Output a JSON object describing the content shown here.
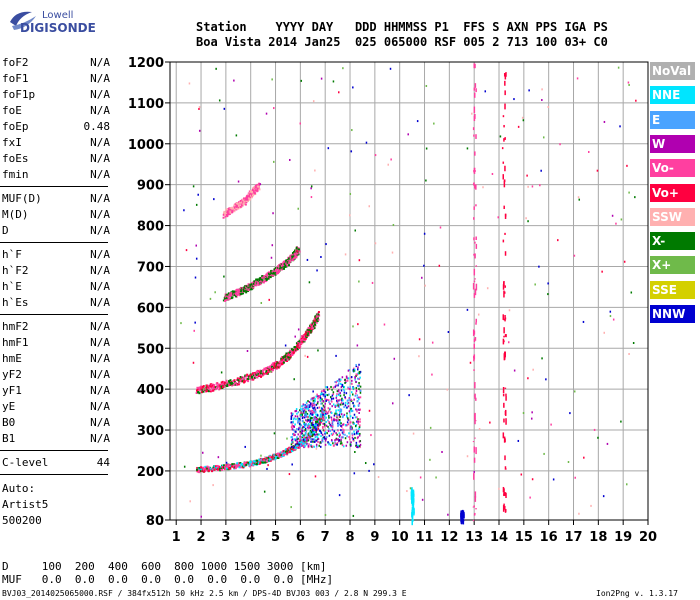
{
  "logo": {
    "line1": "Lowell",
    "line2": "DIGISONDE"
  },
  "header": {
    "row1": "Station    YYYY DAY   DDD HHMMSS P1  FFS S AXN PPS IGA PS",
    "row2": "Boa Vista 2014 Jan25  025 065000 RSF 005 2 713 100 03+ C0"
  },
  "scaled_params": [
    {
      "group": 1,
      "items": [
        {
          "name": "foF2",
          "value": "N/A"
        },
        {
          "name": "foF1",
          "value": "N/A"
        },
        {
          "name": "foF1p",
          "value": "N/A"
        },
        {
          "name": "foE",
          "value": "N/A"
        },
        {
          "name": "foEp",
          "value": "0.48"
        },
        {
          "name": "fxI",
          "value": "N/A"
        },
        {
          "name": "foEs",
          "value": "N/A"
        },
        {
          "name": "fmin",
          "value": "N/A"
        }
      ]
    },
    {
      "group": 2,
      "items": [
        {
          "name": "MUF(D)",
          "value": "N/A"
        },
        {
          "name": "M(D)",
          "value": "N/A"
        },
        {
          "name": "D",
          "value": "N/A"
        }
      ]
    },
    {
      "group": 3,
      "items": [
        {
          "name": "h`F",
          "value": "N/A"
        },
        {
          "name": "h`F2",
          "value": "N/A"
        },
        {
          "name": "h`E",
          "value": "N/A"
        },
        {
          "name": "h`Es",
          "value": "N/A"
        }
      ]
    },
    {
      "group": 4,
      "items": [
        {
          "name": "hmF2",
          "value": "N/A"
        },
        {
          "name": "hmF1",
          "value": "N/A"
        },
        {
          "name": "hmE",
          "value": "N/A"
        },
        {
          "name": "yF2",
          "value": "N/A"
        },
        {
          "name": "yF1",
          "value": "N/A"
        },
        {
          "name": "yE",
          "value": "N/A"
        },
        {
          "name": "B0",
          "value": "N/A"
        },
        {
          "name": "B1",
          "value": "N/A"
        }
      ]
    },
    {
      "group": 5,
      "items": [
        {
          "name": "C-level",
          "value": "44"
        }
      ]
    }
  ],
  "autoscale": {
    "line1": "Auto:",
    "line2": "Artist5",
    "line3": "500200"
  },
  "legend": [
    {
      "label": "NoVal",
      "color": "#b0b0b0"
    },
    {
      "label": "NNE",
      "color": "#00e5ff"
    },
    {
      "label": "E",
      "color": "#4aa3ff"
    },
    {
      "label": "W",
      "color": "#b000b0"
    },
    {
      "label": "Vo-",
      "color": "#ff3fa0"
    },
    {
      "label": "Vo+",
      "color": "#ff0040"
    },
    {
      "label": "SSW",
      "color": "#ffb0b0"
    },
    {
      "label": "X-",
      "color": "#007a00"
    },
    {
      "label": "X+",
      "color": "#6fba4a"
    },
    {
      "label": "SSE",
      "color": "#d4d000"
    },
    {
      "label": "NNW",
      "color": "#0000d0"
    }
  ],
  "footer": {
    "d_row": "D     100  200  400  600  800 1000 1500 3000 [km]",
    "muf_row": "MUF   0.0  0.0  0.0  0.0  0.0  0.0  0.0  0.0 [MHz]",
    "info": "BVJ03_2014025065000.RSF / 384fx512h 50 kHz 2.5 km / DPS-4D BVJ03 003 / 2.8 N 299.3 E",
    "version": "Ion2Png v. 1.3.17"
  },
  "chart_data": {
    "type": "scatter",
    "title": "",
    "xlabel": "",
    "ylabel": "",
    "xlim": [
      0.75,
      20
    ],
    "ylim": [
      80,
      1200
    ],
    "x_ticks": [
      1,
      2,
      3,
      4,
      5,
      6,
      7,
      8,
      9,
      10,
      11,
      12,
      13,
      14,
      15,
      16,
      17,
      18,
      19,
      20
    ],
    "y_ticks": [
      80,
      200,
      300,
      400,
      500,
      600,
      700,
      800,
      900,
      1000,
      1100,
      1200
    ],
    "grid": true,
    "legend_position": "right",
    "traces": [
      {
        "name": "F1 trace",
        "colors": [
          "Vo-",
          "Vo+",
          "X-",
          "NNE"
        ],
        "points": [
          [
            1.8,
            205
          ],
          [
            2.5,
            208
          ],
          [
            3.2,
            213
          ],
          [
            4.0,
            220
          ],
          [
            4.6,
            230
          ],
          [
            5.1,
            240
          ],
          [
            5.5,
            252
          ],
          [
            5.9,
            265
          ],
          [
            6.2,
            280
          ],
          [
            6.5,
            300
          ],
          [
            6.7,
            320
          ],
          [
            6.9,
            345
          ]
        ]
      },
      {
        "name": "2-hop trace",
        "colors": [
          "Vo-",
          "X-",
          "Vo+"
        ],
        "points": [
          [
            1.8,
            400
          ],
          [
            2.5,
            407
          ],
          [
            3.2,
            418
          ],
          [
            4.0,
            432
          ],
          [
            4.6,
            447
          ],
          [
            5.1,
            465
          ],
          [
            5.5,
            485
          ],
          [
            5.9,
            510
          ],
          [
            6.2,
            535
          ],
          [
            6.5,
            560
          ],
          [
            6.7,
            585
          ]
        ]
      },
      {
        "name": "3-hop trace",
        "colors": [
          "Vo-",
          "X-"
        ],
        "points": [
          [
            2.9,
            625
          ],
          [
            3.5,
            640
          ],
          [
            4.0,
            655
          ],
          [
            4.5,
            672
          ],
          [
            5.0,
            692
          ],
          [
            5.4,
            710
          ],
          [
            5.7,
            728
          ],
          [
            5.9,
            745
          ]
        ]
      },
      {
        "name": "faint trace",
        "colors": [
          "Vo-",
          "SSW"
        ],
        "points": [
          [
            2.9,
            830
          ],
          [
            3.3,
            845
          ],
          [
            3.7,
            860
          ],
          [
            4.0,
            880
          ],
          [
            4.3,
            900
          ]
        ]
      },
      {
        "name": "spread",
        "colors": [
          "NNE",
          "E",
          "NNW",
          "Vo-",
          "X-",
          "W"
        ],
        "x_range": [
          5.6,
          8.4
        ],
        "y_range": [
          260,
          470
        ]
      }
    ],
    "noise_columns": [
      {
        "x": 10.5,
        "y_range": [
          80,
          165
        ],
        "color": "NNE"
      },
      {
        "x": 12.5,
        "y_range": [
          80,
          105
        ],
        "color": "NNW"
      },
      {
        "x": 13.0,
        "y_range": [
          80,
          1200
        ],
        "color": "Vo-"
      },
      {
        "x": 14.2,
        "y_range": [
          80,
          1200
        ],
        "color": "Vo+"
      }
    ]
  }
}
